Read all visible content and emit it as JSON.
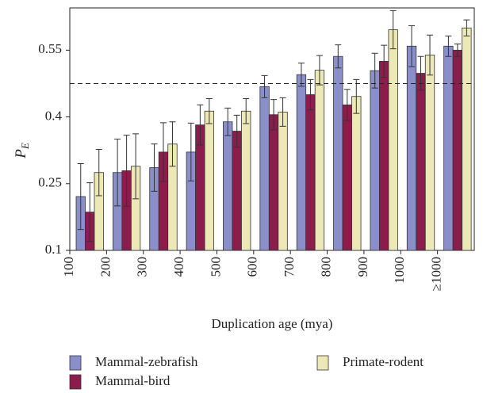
{
  "chart_data": {
    "type": "bar",
    "ylabel": {
      "text": "P",
      "subscript": "E"
    },
    "xlabel": "Duplication age (mya)",
    "categories": [
      "100",
      "200",
      "300",
      "400",
      "500",
      "600",
      "700",
      "800",
      "900",
      "1000",
      "≥1000"
    ],
    "series": [
      {
        "name": "Mammal-zebrafish",
        "color": "#8b8fc9",
        "values": [
          0.221,
          0.275,
          0.286,
          0.321,
          0.389,
          0.468,
          0.495,
          0.536,
          0.504,
          0.559,
          0.559
        ],
        "errors": [
          0.074,
          0.075,
          0.053,
          0.065,
          0.031,
          0.025,
          0.026,
          0.026,
          0.039,
          0.046,
          0.023
        ]
      },
      {
        "name": "Mammal-bird",
        "color": "#8b1c4c",
        "values": [
          0.186,
          0.279,
          0.321,
          0.382,
          0.368,
          0.405,
          0.45,
          0.427,
          0.525,
          0.498,
          0.55
        ],
        "errors": [
          0.066,
          0.08,
          0.066,
          0.045,
          0.036,
          0.034,
          0.034,
          0.035,
          0.036,
          0.038,
          0.014
        ]
      },
      {
        "name": "Primate-rodent",
        "color": "#ede9b7",
        "values": [
          0.275,
          0.289,
          0.339,
          0.413,
          0.413,
          0.411,
          0.505,
          0.446,
          0.596,
          0.539,
          0.6
        ],
        "errors": [
          0.052,
          0.073,
          0.05,
          0.028,
          0.028,
          0.032,
          0.033,
          0.038,
          0.043,
          0.045,
          0.018
        ]
      }
    ],
    "reference_line": 0.475,
    "ylim": [
      0.1,
      0.645
    ],
    "yticks": [
      0.1,
      0.25,
      0.4,
      0.55
    ]
  }
}
